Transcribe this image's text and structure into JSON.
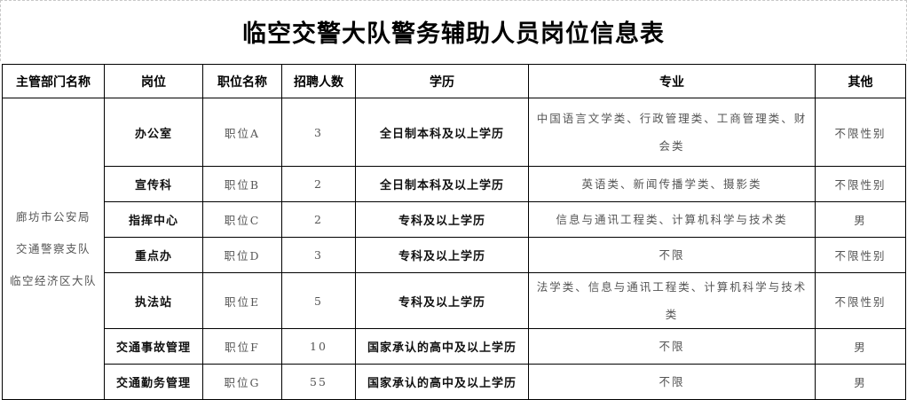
{
  "title": "临空交警大队警务辅助人员岗位信息表",
  "headers": [
    "主管部门名称",
    "岗位",
    "职位名称",
    "招聘人数",
    "学历",
    "专业",
    "其他"
  ],
  "department": [
    "廊坊市公安局",
    "交通警察支队",
    "临空经济区大队"
  ],
  "rows": [
    {
      "post": "办公室",
      "position": "职位A",
      "count": "3",
      "education": "全日制本科及以上学历",
      "major": "中国语言文学类、行政管理类、工商管理类、财会类",
      "other": "不限性别"
    },
    {
      "post": "宣传科",
      "position": "职位B",
      "count": "2",
      "education": "全日制本科及以上学历",
      "major": "英语类、新闻传播学类、摄影类",
      "other": "不限性别"
    },
    {
      "post": "指挥中心",
      "position": "职位C",
      "count": "2",
      "education": "专科及以上学历",
      "major": "信息与通讯工程类、计算机科学与技术类",
      "other": "男"
    },
    {
      "post": "重点办",
      "position": "职位D",
      "count": "3",
      "education": "专科及以上学历",
      "major": "不限",
      "other": "不限性别"
    },
    {
      "post": "执法站",
      "position": "职位E",
      "count": "5",
      "education": "专科及以上学历",
      "major": "法学类、信息与通讯工程类、计算机科学与技术类",
      "other": "不限性别"
    },
    {
      "post": "交通事故管理",
      "position": "职位F",
      "count": "10",
      "education": "国家承认的高中及以上学历",
      "major": "不限",
      "other": "男"
    },
    {
      "post": "交通勤务管理",
      "position": "职位G",
      "count": "55",
      "education": "国家承认的高中及以上学历",
      "major": "不限",
      "other": "男"
    }
  ]
}
